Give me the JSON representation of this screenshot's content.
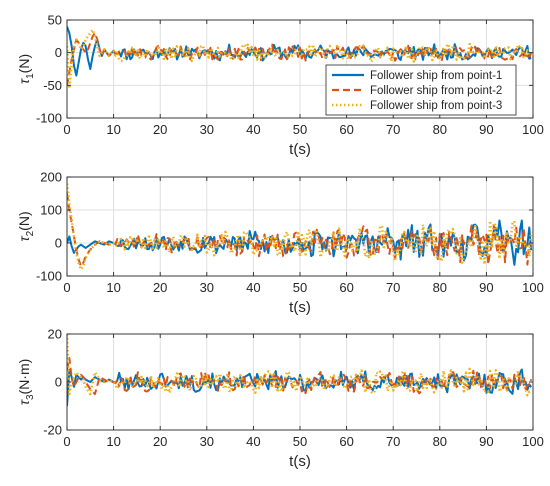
{
  "chart_data": [
    {
      "type": "line",
      "xlabel": "t(s)",
      "ylabel": {
        "main": "τ",
        "sub": "1",
        "unit": "(N)"
      },
      "xlim": [
        0,
        100
      ],
      "ylim": [
        -100,
        50
      ],
      "xticks": [
        0,
        10,
        20,
        30,
        40,
        50,
        60,
        70,
        80,
        90,
        100
      ],
      "yticks": [
        -100,
        -50,
        0,
        50
      ],
      "grid": true,
      "legend": {
        "placement": "inside-lower-right",
        "entries": [
          "Follower ship from point-1",
          "Follower ship from point-2",
          "Follower ship from point-3"
        ]
      },
      "series": [
        {
          "name": "Follower ship from point-1",
          "color": "#0072BD",
          "style": "solid",
          "x": [
            0,
            0.5,
            1,
            1.5,
            2,
            2.5,
            3,
            3.5,
            4,
            4.5,
            5,
            5.5,
            6,
            6.5,
            7,
            7.5,
            8,
            9,
            10
          ],
          "y": [
            40,
            30,
            10,
            -20,
            -35,
            -15,
            5,
            15,
            10,
            -10,
            -25,
            -5,
            10,
            20,
            5,
            -5,
            5,
            -5,
            3
          ],
          "steady": {
            "from": 10,
            "to": 100,
            "amplitude": [
              9,
              10
            ],
            "seed": 11
          }
        },
        {
          "name": "Follower ship from point-2",
          "color": "#D95319",
          "style": "dashed",
          "x": [
            0,
            0.5,
            1,
            1.5,
            2,
            2.5,
            3,
            3.5,
            4,
            4.5,
            5,
            5.5,
            6,
            6.5,
            7,
            7.5,
            8,
            9,
            10
          ],
          "y": [
            -50,
            -30,
            -10,
            5,
            20,
            15,
            10,
            5,
            0,
            5,
            15,
            25,
            30,
            20,
            5,
            -5,
            5,
            -5,
            3
          ],
          "steady": {
            "from": 10,
            "to": 100,
            "amplitude": [
              9,
              10
            ],
            "seed": 23
          }
        },
        {
          "name": "Follower ship from point-3",
          "color": "#EDB120",
          "style": "dotted",
          "x": [
            0,
            0.5,
            1,
            1.5,
            2,
            2.5,
            3,
            3.5,
            4,
            4.5,
            5,
            5.5,
            6,
            6.5,
            7,
            7.5,
            8,
            9,
            10
          ],
          "y": [
            10,
            -55,
            -20,
            10,
            20,
            15,
            5,
            10,
            20,
            25,
            30,
            35,
            25,
            10,
            -5,
            0,
            5,
            -5,
            3
          ],
          "steady": {
            "from": 10,
            "to": 100,
            "amplitude": [
              10,
              11
            ],
            "seed": 37
          }
        }
      ]
    },
    {
      "type": "line",
      "xlabel": "t(s)",
      "ylabel": {
        "main": "τ",
        "sub": "2",
        "unit": "(N)"
      },
      "xlim": [
        0,
        100
      ],
      "ylim": [
        -100,
        200
      ],
      "xticks": [
        0,
        10,
        20,
        30,
        40,
        50,
        60,
        70,
        80,
        90,
        100
      ],
      "yticks": [
        -100,
        0,
        100,
        200
      ],
      "grid": true,
      "series": [
        {
          "name": "Follower ship from point-1",
          "color": "#0072BD",
          "style": "solid",
          "x": [
            0,
            0.5,
            1,
            1.5,
            2,
            2.5,
            3,
            3.5,
            4,
            5,
            6,
            7,
            8,
            9,
            10
          ],
          "y": [
            0,
            20,
            -10,
            -30,
            -20,
            -10,
            -5,
            -10,
            -15,
            -5,
            5,
            0,
            -5,
            5,
            0
          ],
          "steady": {
            "from": 10,
            "to": 100,
            "amplitude": [
              18,
              55
            ],
            "seed": 53
          }
        },
        {
          "name": "Follower ship from point-2",
          "color": "#D95319",
          "style": "dashed",
          "x": [
            0,
            0.5,
            1,
            1.5,
            2,
            2.5,
            3,
            3.5,
            4,
            5,
            6,
            7,
            8,
            9,
            10
          ],
          "y": [
            150,
            100,
            60,
            20,
            -20,
            -50,
            -70,
            -60,
            -40,
            -20,
            -5,
            5,
            0,
            -5,
            0
          ],
          "steady": {
            "from": 10,
            "to": 100,
            "amplitude": [
              18,
              55
            ],
            "seed": 71
          }
        },
        {
          "name": "Follower ship from point-3",
          "color": "#EDB120",
          "style": "dotted",
          "x": [
            0,
            0.5,
            1,
            1.5,
            2,
            2.5,
            3,
            3.5,
            4,
            5,
            6,
            7,
            8,
            9,
            10
          ],
          "y": [
            180,
            120,
            70,
            20,
            -30,
            -60,
            -80,
            -70,
            -45,
            -20,
            -5,
            5,
            0,
            -5,
            0
          ],
          "steady": {
            "from": 10,
            "to": 100,
            "amplitude": [
              20,
              60
            ],
            "seed": 89
          }
        }
      ]
    },
    {
      "type": "line",
      "xlabel": "t(s)",
      "ylabel": {
        "main": "τ",
        "sub": "3",
        "unit": "(N·m)"
      },
      "xlim": [
        0,
        100
      ],
      "ylim": [
        -20,
        20
      ],
      "xticks": [
        0,
        10,
        20,
        30,
        40,
        50,
        60,
        70,
        80,
        90,
        100
      ],
      "yticks": [
        -20,
        0,
        20
      ],
      "grid": true,
      "series": [
        {
          "name": "Follower ship from point-1",
          "color": "#0072BD",
          "style": "solid",
          "x": [
            0,
            0.5,
            1,
            1.5,
            2,
            2.5,
            3,
            3.5,
            4,
            5,
            6,
            7,
            8,
            9,
            10
          ],
          "y": [
            -10,
            5,
            2,
            -2,
            3,
            2,
            1,
            2,
            1,
            0,
            2,
            1,
            0,
            1,
            0
          ],
          "steady": {
            "from": 10,
            "to": 100,
            "amplitude": [
              3,
              4
            ],
            "seed": 101
          }
        },
        {
          "name": "Follower ship from point-2",
          "color": "#D95319",
          "style": "dashed",
          "x": [
            0,
            0.5,
            1,
            1.5,
            2,
            2.5,
            3,
            3.5,
            4,
            5,
            6,
            7,
            8,
            9,
            10
          ],
          "y": [
            5,
            10,
            2,
            -2,
            0,
            2,
            3,
            2,
            0,
            -3,
            -5,
            2,
            1,
            0,
            0
          ],
          "steady": {
            "from": 10,
            "to": 100,
            "amplitude": [
              3,
              4
            ],
            "seed": 113
          }
        },
        {
          "name": "Follower ship from point-3",
          "color": "#EDB120",
          "style": "dotted",
          "x": [
            0,
            0.5,
            1,
            1.5,
            2,
            2.5,
            3,
            3.5,
            4,
            5,
            6,
            7,
            8,
            9,
            10
          ],
          "y": [
            20,
            -5,
            0,
            2,
            4,
            3,
            2,
            1,
            -2,
            -5,
            4,
            1,
            0,
            1,
            0
          ],
          "steady": {
            "from": 10,
            "to": 100,
            "amplitude": [
              3.5,
              4.5
            ],
            "seed": 131
          }
        }
      ]
    }
  ]
}
